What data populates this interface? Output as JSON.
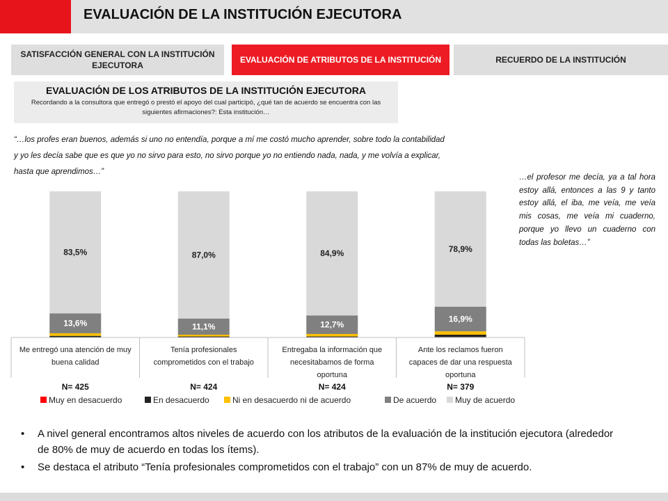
{
  "header": {
    "title": "EVALUACIÓN DE LA INSTITUCIÓN EJECUTORA"
  },
  "tabs": [
    {
      "label": "SATISFACCIÓN GENERAL CON LA INSTITUCIÓN EJECUTORA"
    },
    {
      "label": "EVALUACIÓN DE ATRIBUTOS DE LA INSTITUCIÓN"
    },
    {
      "label": "RECUERDO DE LA INSTITUCIÓN"
    }
  ],
  "section": {
    "title": "EVALUACIÓN DE LOS ATRIBUTOS DE LA INSTITUCIÓN EJECUTORA",
    "question": "Recordando a la consultora que entregó o prestó el apoyo del cual participó, ¿qué tan de acuerdo se encuentra con las siguientes afirmaciones?: Esta institución…"
  },
  "quotes": {
    "main": "“…los profes eran buenos, además si uno no entendía, porque a mí me costó mucho aprender, sobre todo la contabilidad y yo les decía sabe que es que yo no sirvo para esto, no sirvo porque yo no entiendo nada, nada, y me volvía a explicar, hasta que aprendimos…”",
    "side": "…el profesor me decía, ya a tal hora estoy allá, entonces a las 9 y tanto estoy allá, el iba, me veía, me veía mis cosas, me veía mi cuaderno, porque yo llevo un cuaderno con todas las boletas…”"
  },
  "chart_data": {
    "type": "bar",
    "stacked": true,
    "ylim": [
      0,
      100
    ],
    "categories": [
      "Me entregó una atención de muy buena calidad",
      "Tenía profesionales comprometidos con el trabajo",
      "Entregaba la información que necesitabamos de forma oportuna",
      "Ante los reclamos fueron capaces de dar una respuesta oportuna"
    ],
    "n_labels": [
      "N= 425",
      "N= 424",
      "N= 424",
      "N= 379"
    ],
    "series": [
      {
        "name": "Muy en desacuerdo",
        "color": "#ff0000",
        "values": [
          0.2,
          0.2,
          0.2,
          0.3
        ],
        "labels": [
          "",
          "",
          "",
          ""
        ]
      },
      {
        "name": "En desacuerdo",
        "color": "#222222",
        "values": [
          0.9,
          0.5,
          0.5,
          1.6
        ],
        "labels": [
          "",
          "",
          "",
          ""
        ]
      },
      {
        "name": "Ni en desacuerdo ni de acuerdo",
        "color": "#ffc000",
        "values": [
          1.8,
          1.2,
          1.7,
          2.3
        ],
        "labels": [
          "",
          "",
          "",
          ""
        ]
      },
      {
        "name": "De acuerdo",
        "color": "#808080",
        "values": [
          13.6,
          11.1,
          12.7,
          16.9
        ],
        "labels": [
          "13,6%",
          "11,1%",
          "12,7%",
          "16,9%"
        ]
      },
      {
        "name": "Muy de acuerdo",
        "color": "#d9d9d9",
        "values": [
          83.5,
          87.0,
          84.9,
          78.9
        ],
        "labels": [
          "83,5%",
          "87,0%",
          "84,9%",
          "78,9%"
        ]
      }
    ],
    "legend_position": "bottom"
  },
  "bullets": [
    "A nivel general encontramos altos niveles de acuerdo con los atributos de la evaluación de la institución ejecutora (alrededor de 80% de muy de acuerdo en todas los ítems).",
    "Se destaca el atributo “Tenía profesionales comprometidos con el trabajo” con un 87% de muy de acuerdo."
  ]
}
